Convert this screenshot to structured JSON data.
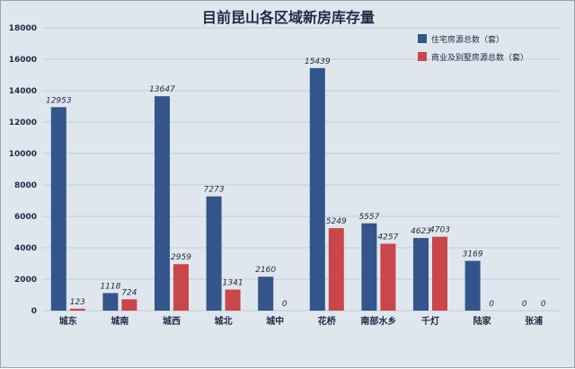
{
  "chart_data": {
    "type": "bar",
    "title": "目前昆山各区域新房库存量",
    "categories": [
      "城东",
      "城南",
      "城西",
      "城北",
      "城中",
      "花桥",
      "南部水乡",
      "千灯",
      "陆家",
      "张浦"
    ],
    "series": [
      {
        "name": "住宅房源总数（套）",
        "color": "#34558b",
        "values": [
          12953,
          1118,
          13647,
          7273,
          2160,
          15439,
          5557,
          4623,
          3169,
          0
        ]
      },
      {
        "name": "商业及别墅房源总数（套）",
        "color": "#c9474a",
        "values": [
          123,
          724,
          2959,
          1341,
          0,
          5249,
          4257,
          4703,
          0,
          0
        ]
      }
    ],
    "yticks": [
      0,
      2000,
      4000,
      6000,
      8000,
      10000,
      12000,
      14000,
      16000,
      18000
    ],
    "ylim": [
      0,
      18000
    ],
    "grid": true,
    "legend_position": "top-right"
  }
}
